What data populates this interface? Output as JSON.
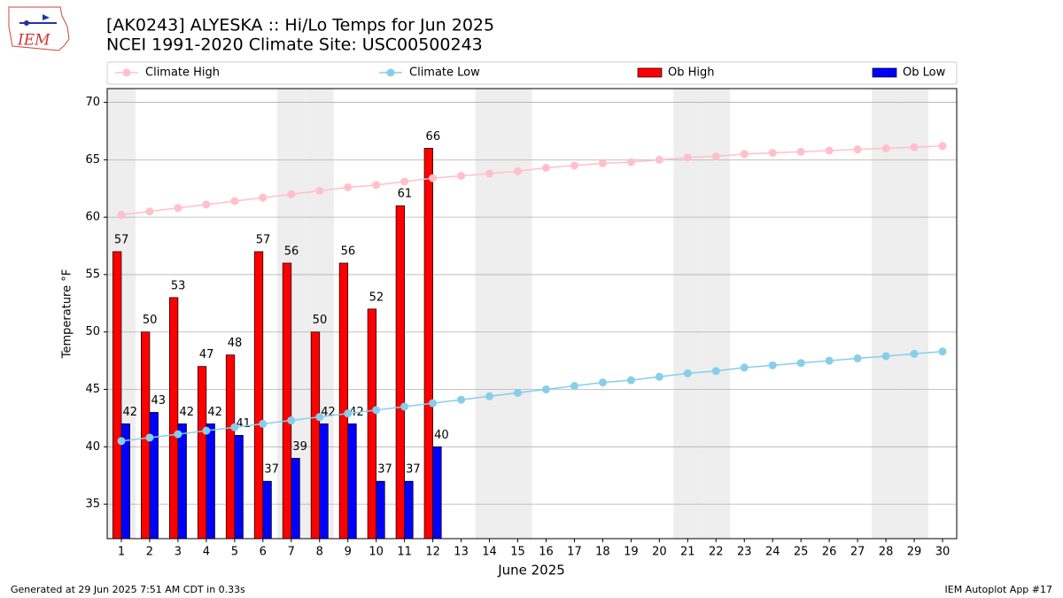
{
  "chart_data": {
    "type": "bar_line",
    "title": "[AK0243] ALYESKA :: Hi/Lo Temps for Jun 2025",
    "subtitle": "NCEI 1991-2020 Climate Site: USC00500243",
    "xlabel": "June 2025",
    "ylabel": "Temperature °F",
    "logo_text": "IEM",
    "footer_left": "Generated at 29 Jun 2025 7:51 AM CDT in 0.33s",
    "footer_right": "IEM Autoplot App #17",
    "x": [
      1,
      2,
      3,
      4,
      5,
      6,
      7,
      8,
      9,
      10,
      11,
      12,
      13,
      14,
      15,
      16,
      17,
      18,
      19,
      20,
      21,
      22,
      23,
      24,
      25,
      26,
      27,
      28,
      29,
      30
    ],
    "shaded_days": [
      1,
      7,
      8,
      14,
      15,
      21,
      22,
      28,
      29
    ],
    "shade_color": "#eeeeee",
    "series": [
      {
        "name": "Climate High",
        "kind": "line",
        "color": "#ffc0cb",
        "values": [
          60.2,
          60.5,
          60.8,
          61.1,
          61.4,
          61.7,
          62.0,
          62.3,
          62.6,
          62.8,
          63.1,
          63.4,
          63.6,
          63.8,
          64.0,
          64.3,
          64.5,
          64.7,
          64.8,
          65.0,
          65.2,
          65.3,
          65.5,
          65.6,
          65.7,
          65.8,
          65.9,
          66.0,
          66.1,
          66.2
        ]
      },
      {
        "name": "Climate Low",
        "kind": "line",
        "color": "#87ceeb",
        "values": [
          40.5,
          40.8,
          41.1,
          41.4,
          41.7,
          42.0,
          42.3,
          42.6,
          42.9,
          43.2,
          43.5,
          43.8,
          44.1,
          44.4,
          44.7,
          45.0,
          45.3,
          45.6,
          45.8,
          46.1,
          46.4,
          46.6,
          46.9,
          47.1,
          47.3,
          47.5,
          47.7,
          47.9,
          48.1,
          48.3
        ]
      },
      {
        "name": "Ob High",
        "kind": "bar",
        "color": "#ff0000",
        "values": [
          57,
          50,
          53,
          47,
          48,
          57,
          56,
          50,
          56,
          52,
          61,
          66,
          null,
          null,
          null,
          null,
          null,
          null,
          null,
          null,
          null,
          null,
          null,
          null,
          null,
          null,
          null,
          null,
          null,
          null
        ]
      },
      {
        "name": "Ob Low",
        "kind": "bar",
        "color": "#0000ff",
        "values": [
          42,
          43,
          42,
          42,
          41,
          37,
          39,
          42,
          42,
          37,
          37,
          40,
          null,
          null,
          null,
          null,
          null,
          null,
          null,
          null,
          null,
          null,
          null,
          null,
          null,
          null,
          null,
          null,
          null,
          null
        ]
      }
    ],
    "xlim": [
      0.5,
      30.5
    ],
    "xticks": [
      1,
      2,
      3,
      4,
      5,
      6,
      7,
      8,
      9,
      10,
      11,
      12,
      13,
      14,
      15,
      16,
      17,
      18,
      19,
      20,
      21,
      22,
      23,
      24,
      25,
      26,
      27,
      28,
      29,
      30
    ],
    "ylim": [
      32,
      71.2
    ],
    "yticks": [
      35,
      40,
      45,
      50,
      55,
      60,
      65,
      70
    ],
    "grid": true,
    "legend": "top"
  }
}
